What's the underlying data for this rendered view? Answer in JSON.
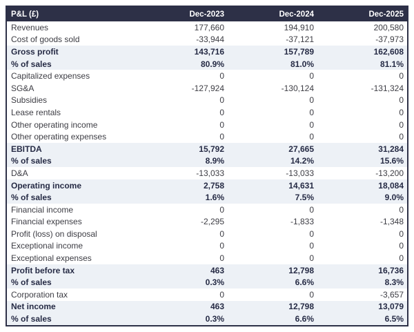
{
  "table": {
    "title": "P&L (£)",
    "columns": [
      "Dec-2023",
      "Dec-2024",
      "Dec-2025"
    ],
    "rows": [
      {
        "label": "Revenues",
        "values": [
          "177,660",
          "194,910",
          "200,580"
        ],
        "bold": false
      },
      {
        "label": "Cost of goods sold",
        "values": [
          "-33,944",
          "-37,121",
          "-37,973"
        ],
        "bold": false
      },
      {
        "label": "Gross profit",
        "values": [
          "143,716",
          "157,789",
          "162,608"
        ],
        "bold": true
      },
      {
        "label": "% of sales",
        "values": [
          "80.9%",
          "81.0%",
          "81.1%"
        ],
        "bold": true
      },
      {
        "label": "Capitalized expenses",
        "values": [
          "0",
          "0",
          "0"
        ],
        "bold": false
      },
      {
        "label": "SG&A",
        "values": [
          "-127,924",
          "-130,124",
          "-131,324"
        ],
        "bold": false
      },
      {
        "label": "Subsidies",
        "values": [
          "0",
          "0",
          "0"
        ],
        "bold": false
      },
      {
        "label": "Lease rentals",
        "values": [
          "0",
          "0",
          "0"
        ],
        "bold": false
      },
      {
        "label": "Other operating income",
        "values": [
          "0",
          "0",
          "0"
        ],
        "bold": false
      },
      {
        "label": "Other operating expenses",
        "values": [
          "0",
          "0",
          "0"
        ],
        "bold": false
      },
      {
        "label": "EBITDA",
        "values": [
          "15,792",
          "27,665",
          "31,284"
        ],
        "bold": true
      },
      {
        "label": "% of sales",
        "values": [
          "8.9%",
          "14.2%",
          "15.6%"
        ],
        "bold": true
      },
      {
        "label": "D&A",
        "values": [
          "-13,033",
          "-13,033",
          "-13,200"
        ],
        "bold": false
      },
      {
        "label": "Operating income",
        "values": [
          "2,758",
          "14,631",
          "18,084"
        ],
        "bold": true
      },
      {
        "label": "% of sales",
        "values": [
          "1.6%",
          "7.5%",
          "9.0%"
        ],
        "bold": true
      },
      {
        "label": "Financial income",
        "values": [
          "0",
          "0",
          "0"
        ],
        "bold": false
      },
      {
        "label": "Financial expenses",
        "values": [
          "-2,295",
          "-1,833",
          "-1,348"
        ],
        "bold": false
      },
      {
        "label": "Profit (loss) on disposal",
        "values": [
          "0",
          "0",
          "0"
        ],
        "bold": false
      },
      {
        "label": "Exceptional income",
        "values": [
          "0",
          "0",
          "0"
        ],
        "bold": false
      },
      {
        "label": "Exceptional expenses",
        "values": [
          "0",
          "0",
          "0"
        ],
        "bold": false
      },
      {
        "label": "Profit before tax",
        "values": [
          "463",
          "12,798",
          "16,736"
        ],
        "bold": true
      },
      {
        "label": "% of sales",
        "values": [
          "0.3%",
          "6.6%",
          "8.3%"
        ],
        "bold": true
      },
      {
        "label": "Corporation tax",
        "values": [
          "0",
          "0",
          "-3,657"
        ],
        "bold": false
      },
      {
        "label": "Net income",
        "values": [
          "463",
          "12,798",
          "13,079"
        ],
        "bold": true
      },
      {
        "label": "% of sales",
        "values": [
          "0.3%",
          "6.6%",
          "6.5%"
        ],
        "bold": true
      }
    ]
  },
  "colors": {
    "header_bg": "#2d3047",
    "border": "#2d3047",
    "row_highlight": "#edf1f6",
    "body_text": "#3c3c43",
    "emphasis_text": "#262b45",
    "header_text": "#ffffff"
  }
}
